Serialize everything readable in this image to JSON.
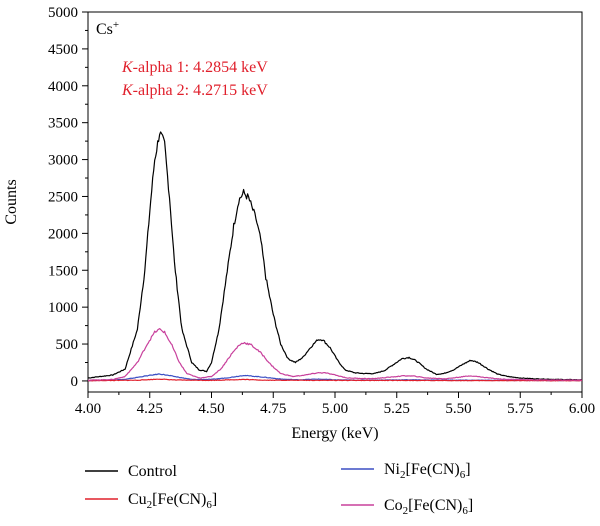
{
  "chart_data": {
    "type": "line",
    "xlabel": "Energy (keV)",
    "ylabel": "Counts",
    "xlim": [
      4.0,
      6.0
    ],
    "ylim": [
      -150,
      5000
    ],
    "xticks": [
      "4.00",
      "4.25",
      "4.50",
      "4.75",
      "5.00",
      "5.25",
      "5.50",
      "5.75",
      "6.00"
    ],
    "yticks": [
      "0",
      "500",
      "1000",
      "1500",
      "2000",
      "2500",
      "3000",
      "3500",
      "4000",
      "4500",
      "5000"
    ],
    "ion_label": {
      "base": "Cs",
      "sup": "+"
    },
    "annotations": [
      {
        "italic": "K",
        "rest": "-alpha 1: 4.2854 keV"
      },
      {
        "italic": "K",
        "rest": "-alpha 2: 4.2715 keV"
      }
    ],
    "legend": [
      {
        "base": "Control",
        "sub1": "",
        "mid": "",
        "sub2": "",
        "end": ""
      },
      {
        "base": "Ni",
        "sub1": "2",
        "mid": "[Fe(CN)",
        "sub2": "6",
        "end": "]"
      },
      {
        "base": "Cu",
        "sub1": "2",
        "mid": "[Fe(CN)",
        "sub2": "6",
        "end": "]"
      },
      {
        "base": "Co",
        "sub1": "2",
        "mid": "[Fe(CN)",
        "sub2": "6",
        "end": "]"
      }
    ],
    "series": [
      {
        "color": "#000000",
        "points": [
          [
            4.0,
            40
          ],
          [
            4.05,
            60
          ],
          [
            4.1,
            80
          ],
          [
            4.15,
            160
          ],
          [
            4.2,
            700
          ],
          [
            4.23,
            1500
          ],
          [
            4.25,
            2300
          ],
          [
            4.27,
            3000
          ],
          [
            4.29,
            3370
          ],
          [
            4.31,
            3200
          ],
          [
            4.33,
            2500
          ],
          [
            4.35,
            1600
          ],
          [
            4.38,
            700
          ],
          [
            4.42,
            250
          ],
          [
            4.45,
            150
          ],
          [
            4.48,
            130
          ],
          [
            4.5,
            250
          ],
          [
            4.53,
            700
          ],
          [
            4.56,
            1400
          ],
          [
            4.59,
            2100
          ],
          [
            4.61,
            2450
          ],
          [
            4.63,
            2550
          ],
          [
            4.65,
            2480
          ],
          [
            4.68,
            2200
          ],
          [
            4.7,
            1900
          ],
          [
            4.72,
            1400
          ],
          [
            4.75,
            900
          ],
          [
            4.78,
            500
          ],
          [
            4.81,
            300
          ],
          [
            4.84,
            250
          ],
          [
            4.87,
            320
          ],
          [
            4.9,
            450
          ],
          [
            4.93,
            560
          ],
          [
            4.95,
            560
          ],
          [
            4.98,
            450
          ],
          [
            5.01,
            280
          ],
          [
            5.04,
            150
          ],
          [
            5.08,
            110
          ],
          [
            5.12,
            100
          ],
          [
            5.16,
            100
          ],
          [
            5.2,
            140
          ],
          [
            5.24,
            230
          ],
          [
            5.27,
            300
          ],
          [
            5.3,
            320
          ],
          [
            5.33,
            270
          ],
          [
            5.37,
            160
          ],
          [
            5.41,
            90
          ],
          [
            5.44,
            100
          ],
          [
            5.48,
            150
          ],
          [
            5.52,
            230
          ],
          [
            5.55,
            280
          ],
          [
            5.58,
            250
          ],
          [
            5.62,
            160
          ],
          [
            5.66,
            90
          ],
          [
            5.7,
            60
          ],
          [
            5.75,
            40
          ],
          [
            5.8,
            30
          ],
          [
            5.9,
            20
          ],
          [
            6.0,
            15
          ]
        ]
      },
      {
        "color": "#3b4fc4",
        "points": [
          [
            4.0,
            5
          ],
          [
            4.15,
            20
          ],
          [
            4.22,
            60
          ],
          [
            4.29,
            95
          ],
          [
            4.35,
            60
          ],
          [
            4.42,
            20
          ],
          [
            4.5,
            20
          ],
          [
            4.57,
            45
          ],
          [
            4.63,
            75
          ],
          [
            4.7,
            55
          ],
          [
            4.78,
            25
          ],
          [
            4.85,
            15
          ],
          [
            4.93,
            25
          ],
          [
            5.0,
            15
          ],
          [
            5.1,
            10
          ],
          [
            5.3,
            15
          ],
          [
            5.5,
            10
          ],
          [
            6.0,
            5
          ]
        ]
      },
      {
        "color": "#e0202c",
        "points": [
          [
            4.0,
            3
          ],
          [
            4.2,
            10
          ],
          [
            4.29,
            25
          ],
          [
            4.36,
            12
          ],
          [
            4.5,
            8
          ],
          [
            4.63,
            20
          ],
          [
            4.72,
            10
          ],
          [
            5.0,
            8
          ],
          [
            5.5,
            5
          ],
          [
            6.0,
            3
          ]
        ]
      },
      {
        "color": "#c8409c",
        "points": [
          [
            4.0,
            10
          ],
          [
            4.1,
            20
          ],
          [
            4.15,
            60
          ],
          [
            4.2,
            250
          ],
          [
            4.24,
            500
          ],
          [
            4.27,
            660
          ],
          [
            4.29,
            700
          ],
          [
            4.31,
            660
          ],
          [
            4.34,
            480
          ],
          [
            4.37,
            250
          ],
          [
            4.4,
            100
          ],
          [
            4.45,
            40
          ],
          [
            4.5,
            60
          ],
          [
            4.54,
            170
          ],
          [
            4.58,
            360
          ],
          [
            4.61,
            480
          ],
          [
            4.63,
            520
          ],
          [
            4.66,
            490
          ],
          [
            4.7,
            380
          ],
          [
            4.74,
            220
          ],
          [
            4.78,
            100
          ],
          [
            4.83,
            60
          ],
          [
            4.88,
            80
          ],
          [
            4.93,
            110
          ],
          [
            4.96,
            110
          ],
          [
            5.0,
            80
          ],
          [
            5.05,
            40
          ],
          [
            5.15,
            30
          ],
          [
            5.22,
            50
          ],
          [
            5.28,
            70
          ],
          [
            5.32,
            65
          ],
          [
            5.37,
            40
          ],
          [
            5.45,
            30
          ],
          [
            5.5,
            50
          ],
          [
            5.55,
            70
          ],
          [
            5.6,
            50
          ],
          [
            5.67,
            25
          ],
          [
            5.8,
            15
          ],
          [
            6.0,
            10
          ]
        ]
      }
    ]
  }
}
